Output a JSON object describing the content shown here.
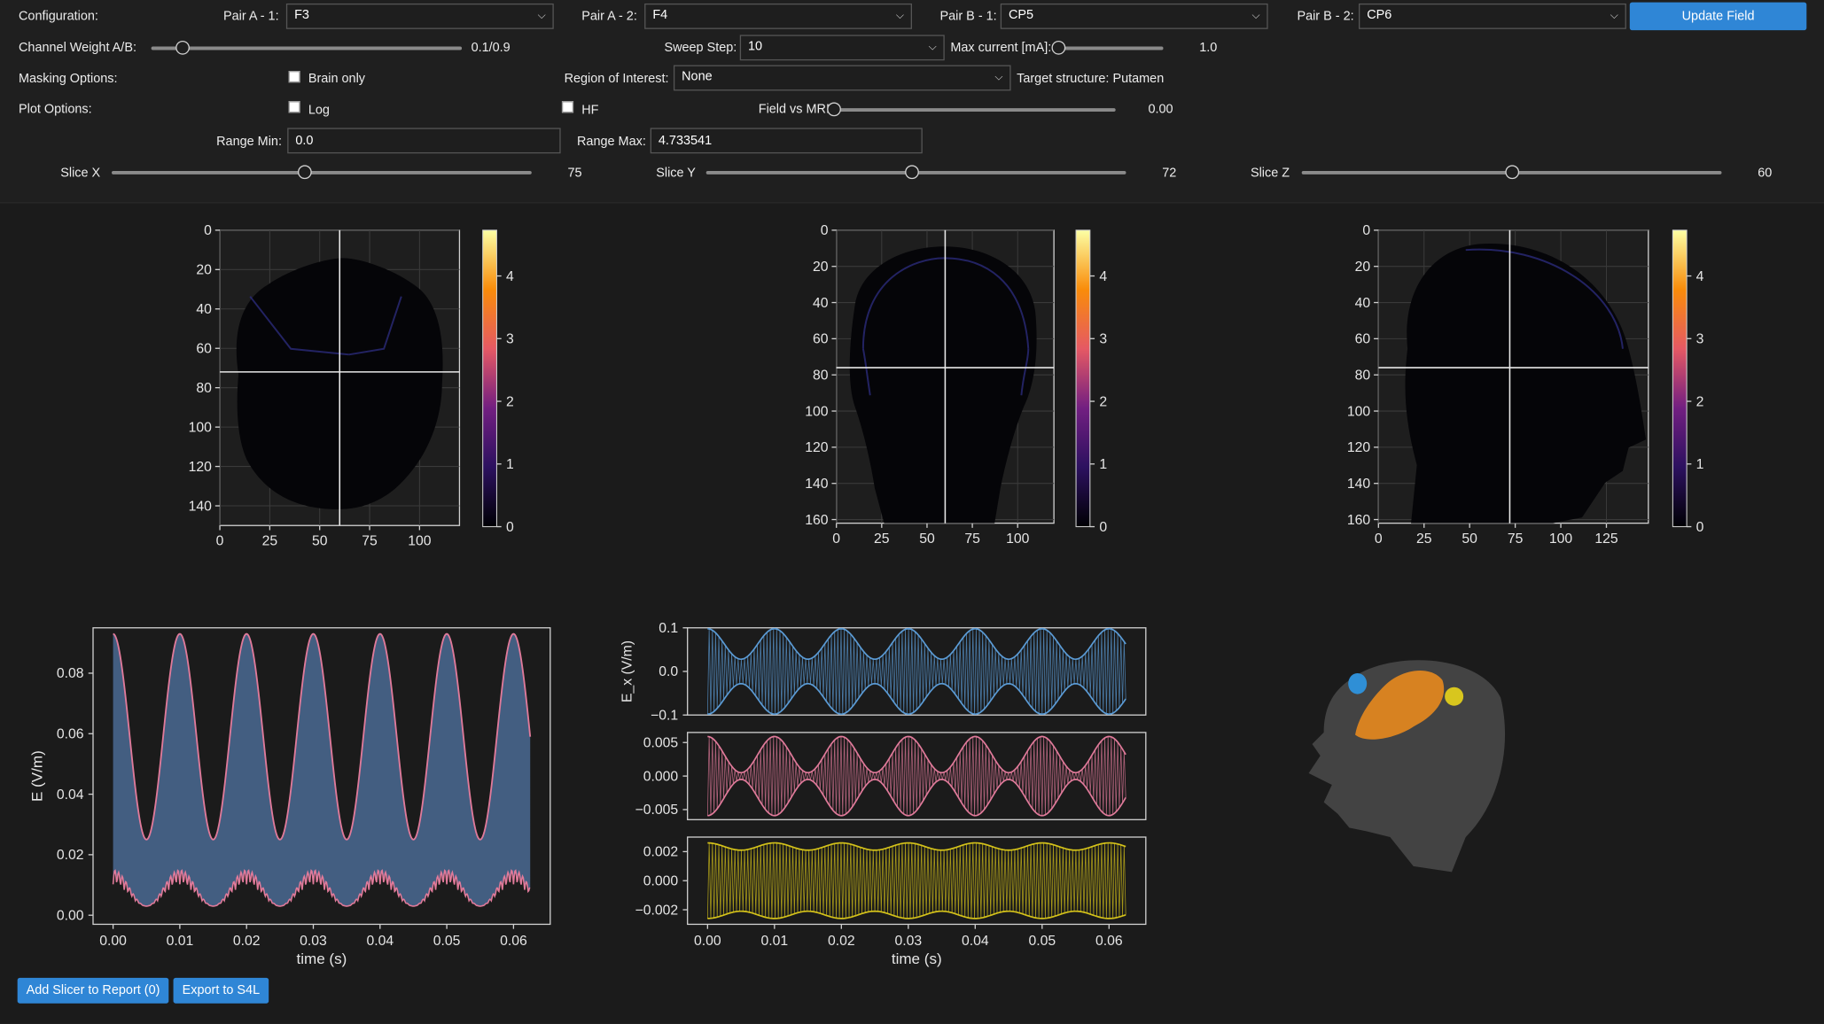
{
  "controls": {
    "configuration_label": "Configuration:",
    "pairs": [
      {
        "label": "Pair A - 1:",
        "value": "F3"
      },
      {
        "label": "Pair A - 2:",
        "value": "F4"
      },
      {
        "label": "Pair B - 1:",
        "value": "CP5"
      },
      {
        "label": "Pair B - 2:",
        "value": "CP6"
      }
    ],
    "update_button": "Update Field",
    "channel_weight": {
      "label": "Channel Weight A/B:",
      "value_text": "0.1/0.9",
      "level": 0.1
    },
    "sweep_step": {
      "label": "Sweep Step:",
      "value": "10"
    },
    "max_current": {
      "label": "Max current [mA]:",
      "value_text": "1.0",
      "level": 0.0
    },
    "masking": {
      "label": "Masking Options:",
      "brain_only_label": "Brain only",
      "brain_only_checked": false
    },
    "roi": {
      "label": "Region of Interest:",
      "value": "None",
      "target_text": "Target structure: Putamen"
    },
    "plot_options": {
      "label": "Plot Options:",
      "log_label": "Log",
      "log_checked": false,
      "hf_label": "HF",
      "hf_checked": false
    },
    "field_vs_mri": {
      "label": "Field vs MRI",
      "value_text": "0.00",
      "level": 0.0
    },
    "range_min": {
      "label": "Range Min:",
      "value": "0.0"
    },
    "range_max": {
      "label": "Range Max:",
      "value": "4.733541"
    },
    "slices": [
      {
        "label": "Slice X",
        "value_text": "75",
        "level": 0.46
      },
      {
        "label": "Slice Y",
        "value_text": "72",
        "level": 0.49
      },
      {
        "label": "Slice Z",
        "value_text": "60",
        "level": 0.5
      }
    ]
  },
  "buttons": {
    "add_slicer": "Add Slicer to Report (0)",
    "export": "Export to S4L"
  },
  "colors": {
    "accent": "#2f86d6",
    "panel_bg": "#1f1f1f",
    "plot_bg": "#1b1b1b",
    "line_blue": "#5b9bd5",
    "line_pink": "#e07a9a",
    "line_yellow": "#d4c21a",
    "fill_blue": "#4a6a93"
  },
  "chart_data": [
    {
      "type": "heatmap",
      "view": "axial",
      "x_ticks": [
        "0",
        "25",
        "50",
        "75",
        "100"
      ],
      "y_ticks": [
        "0",
        "20",
        "40",
        "60",
        "80",
        "100",
        "120",
        "140"
      ],
      "crosshair": {
        "x": 60,
        "y": 72
      },
      "colorbar_ticks": [
        "0",
        "1",
        "2",
        "3",
        "4"
      ],
      "colorbar_range": [
        0,
        4.73
      ]
    },
    {
      "type": "heatmap",
      "view": "coronal",
      "x_ticks": [
        "0",
        "25",
        "50",
        "75",
        "100"
      ],
      "y_ticks": [
        "0",
        "20",
        "40",
        "60",
        "80",
        "100",
        "120",
        "140",
        "160"
      ],
      "crosshair": {
        "x": 60,
        "y": 76
      },
      "colorbar_ticks": [
        "0",
        "1",
        "2",
        "3",
        "4"
      ],
      "colorbar_range": [
        0,
        4.73
      ]
    },
    {
      "type": "heatmap",
      "view": "sagittal",
      "x_ticks": [
        "0",
        "25",
        "50",
        "75",
        "100",
        "125"
      ],
      "y_ticks": [
        "0",
        "20",
        "40",
        "60",
        "80",
        "100",
        "120",
        "140",
        "160"
      ],
      "crosshair": {
        "x": 72,
        "y": 76
      },
      "colorbar_ticks": [
        "0",
        "1",
        "2",
        "3",
        "4"
      ],
      "colorbar_range": [
        0,
        4.73
      ]
    },
    {
      "type": "area",
      "xlabel": "time (s)",
      "ylabel": "E (V/m)",
      "x_ticks": [
        "0.00",
        "0.01",
        "0.02",
        "0.03",
        "0.04",
        "0.05",
        "0.06"
      ],
      "y_ticks": [
        "0.00",
        "0.02",
        "0.04",
        "0.06",
        "0.08"
      ],
      "xlim": [
        -0.003,
        0.0655
      ],
      "ylim": [
        -0.003,
        0.095
      ],
      "series": [
        {
          "role": "upper envelope",
          "x_range": [
            0,
            0.0625
          ],
          "min": 0.025,
          "max": 0.093,
          "period_s": 0.01
        },
        {
          "role": "lower envelope",
          "x_range": [
            0,
            0.0625
          ],
          "min": 0.003,
          "max": 0.015,
          "period_s": 0.01
        }
      ]
    },
    {
      "type": "line",
      "xlabel": "time (s)",
      "x_ticks": [
        "0.00",
        "0.01",
        "0.02",
        "0.03",
        "0.04",
        "0.05",
        "0.06"
      ],
      "xlim": [
        -0.003,
        0.0655
      ],
      "series": [
        {
          "ylabel": "E_x (V/m)",
          "y_ticks": [
            "0.1",
            "0.0",
            "−0.1"
          ],
          "ylim": [
            -0.1,
            0.1
          ],
          "amplitude": 0.098,
          "envelope_min": 0.028
        },
        {
          "ylabel": "",
          "y_ticks": [
            "0.005",
            "0.000",
            "−0.005"
          ],
          "ylim": [
            -0.0065,
            0.0065
          ],
          "amplitude": 0.0059,
          "envelope_min": 0.0005
        },
        {
          "ylabel": "",
          "y_ticks": [
            "0.002",
            "0.000",
            "−0.002"
          ],
          "ylim": [
            -0.003,
            0.003
          ],
          "amplitude": 0.0026,
          "envelope_min": 0.0021
        }
      ]
    }
  ]
}
